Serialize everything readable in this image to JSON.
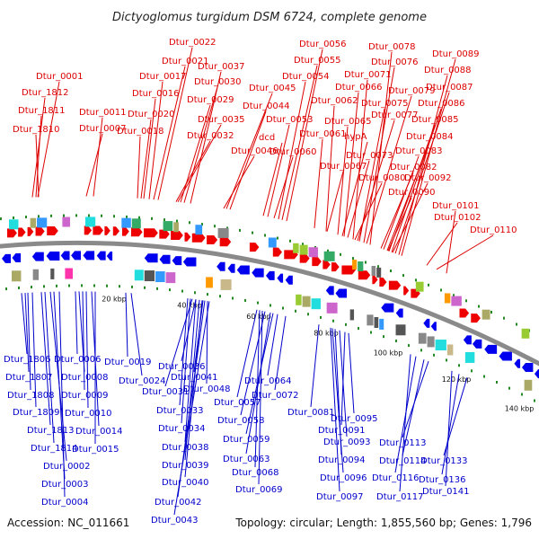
{
  "title": "Dictyoglomus turgidum DSM 6724, complete genome",
  "footer": {
    "accession": "Accession: NC_011661",
    "summary": "Topology: circular; Length: 1,855,560 bp; Genes: 1,796"
  },
  "colors": {
    "forward_label": "#dd0000",
    "reverse_label": "#0000cc",
    "forward_arrow": "#ee0000",
    "reverse_arrow": "#0000ee",
    "backbone": "#8a8a8a",
    "tick_dot": "#228822"
  },
  "scale_ticks": [
    "20 kbp",
    "40 kbp",
    "60 kbp",
    "80 kbp",
    "100 kbp",
    "120 kbp",
    "140 kbp"
  ],
  "forward_labels": [
    "Dtur_0001",
    "Dtur_1812",
    "Dtur_1811",
    "Dtur_1810",
    "Dtur_0007",
    "Dtur_0011",
    "Dtur_0022",
    "Dtur_0021",
    "Dtur_0017",
    "Dtur_0016",
    "Dtur_0020",
    "Dtur_0018",
    "Dtur_0037",
    "Dtur_0030",
    "Dtur_0029",
    "Dtur_0035",
    "Dtur_0032",
    "Dtur_0045",
    "Dtur_0044",
    "Dtur_0046",
    "Dtur_0056",
    "Dtur_0055",
    "Dtur_0054",
    "Dtur_0053",
    "dcd",
    "Dtur_0060",
    "Dtur_0066",
    "Dtur_0062",
    "Dtur_0065",
    "Dtur_0061",
    "Dtur_0067",
    "Dtur_0078",
    "Dtur_0076",
    "Dtur_0071",
    "Dtur_0079",
    "Dtur_0075",
    "Dtur_0077",
    "hypA",
    "Dtur_0073",
    "Dtur_0080",
    "Dtur_0089",
    "Dtur_0088",
    "Dtur_0087",
    "Dtur_0086",
    "Dtur_0085",
    "Dtur_0084",
    "Dtur_0083",
    "Dtur_0082",
    "Dtur_0092",
    "Dtur_0090",
    "Dtur_0101",
    "Dtur_0102",
    "Dtur_0110"
  ],
  "reverse_labels": [
    "Dtur_1806",
    "Dtur_1807",
    "Dtur_1808",
    "Dtur_1809",
    "Dtur_1813",
    "Dtur_1814",
    "Dtur_0002",
    "Dtur_0003",
    "Dtur_0004",
    "Dtur_0006",
    "Dtur_0008",
    "Dtur_0009",
    "Dtur_0010",
    "Dtur_0014",
    "Dtur_0015",
    "Dtur_0019",
    "Dtur_0024",
    "Dtur_0036",
    "Dtur_0041",
    "Dtur_0031",
    "Dtur_0048",
    "Dtur_0033",
    "Dtur_0034",
    "Dtur_0038",
    "Dtur_0039",
    "Dtur_0040",
    "Dtur_0042",
    "Dtur_0043",
    "Dtur_0064",
    "Dtur_0057",
    "Dtur_0072",
    "Dtur_0058",
    "Dtur_0059",
    "Dtur_0063",
    "Dtur_0068",
    "Dtur_0069",
    "Dtur_0081",
    "Dtur_0095",
    "Dtur_0091",
    "Dtur_0093",
    "Dtur_0094",
    "Dtur_0096",
    "Dtur_0097",
    "Dtur_0113",
    "Dtur_0114",
    "Dtur_0116",
    "Dtur_0117",
    "Dtur_0133",
    "Dtur_0136",
    "Dtur_0141"
  ]
}
